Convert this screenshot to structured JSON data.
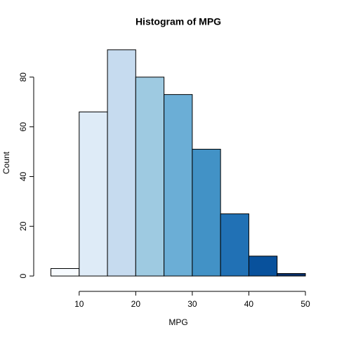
{
  "chart_data": {
    "type": "histogram",
    "title": "Histogram of MPG",
    "x_label": "MPG",
    "y_label": "Count",
    "bins": [
      5,
      10,
      15,
      20,
      25,
      30,
      35,
      40,
      45,
      50
    ],
    "counts": [
      3,
      66,
      91,
      80,
      73,
      51,
      25,
      8,
      1
    ],
    "colors": [
      "#F7FBFF",
      "#DEEBF7",
      "#C6DBEF",
      "#9ECAE1",
      "#6BAED6",
      "#4292C6",
      "#2171B5",
      "#08519C",
      "#08306B"
    ],
    "xlim": [
      3.2,
      51.8
    ],
    "ylim": [
      -3.64,
      94.64
    ],
    "xticks": [
      10,
      20,
      30,
      40,
      50
    ],
    "yticks": [
      0,
      20,
      40,
      60,
      80
    ]
  }
}
